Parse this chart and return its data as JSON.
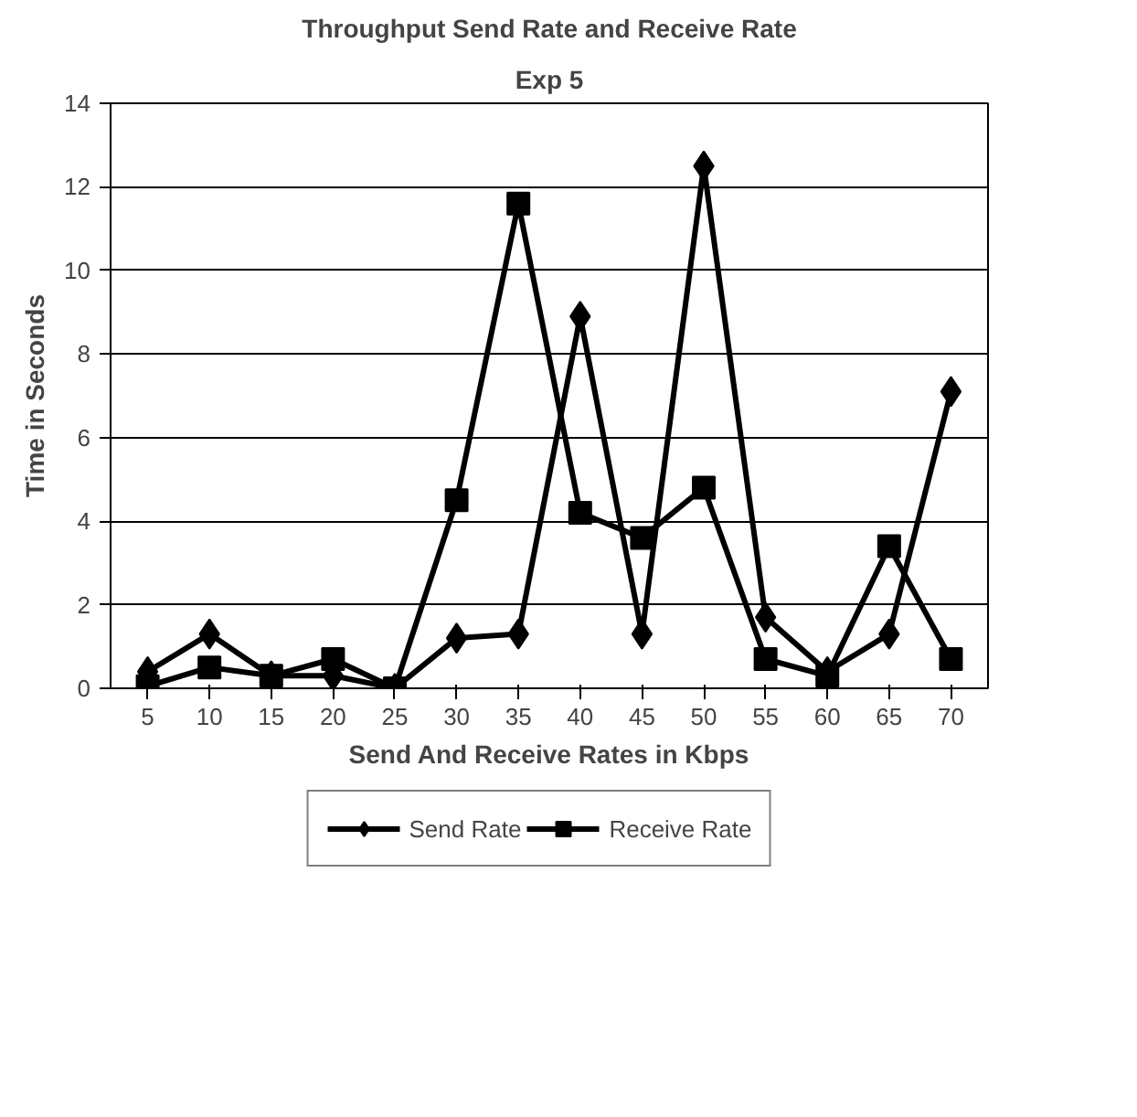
{
  "chart_data": {
    "type": "line",
    "title": "Throughput Send Rate and Receive Rate",
    "subtitle": "Exp 5",
    "xlabel": "Send And Receive Rates in Kbps",
    "ylabel": "Time in Seconds",
    "categories": [
      "5",
      "10",
      "15",
      "20",
      "25",
      "30",
      "35",
      "40",
      "45",
      "50",
      "55",
      "60",
      "65",
      "70"
    ],
    "series": [
      {
        "name": "Send Rate",
        "color": "#000000",
        "marker": "diamond",
        "values": [
          0.4,
          1.3,
          0.3,
          0.3,
          0,
          1.2,
          1.3,
          8.9,
          1.3,
          12.5,
          1.7,
          0.4,
          1.3,
          7.1
        ]
      },
      {
        "name": "Receive Rate",
        "color": "#000000",
        "marker": "square",
        "values": [
          0.05,
          0.5,
          0.3,
          0.7,
          0,
          4.5,
          11.6,
          4.2,
          3.6,
          4.8,
          0.7,
          0.3,
          3.4,
          0.7
        ]
      }
    ],
    "ylim": [
      0,
      14
    ],
    "yticks": [
      0,
      2,
      4,
      6,
      8,
      10,
      12,
      14
    ],
    "grid": "y",
    "legend": "bottom",
    "line_style": "solid"
  }
}
